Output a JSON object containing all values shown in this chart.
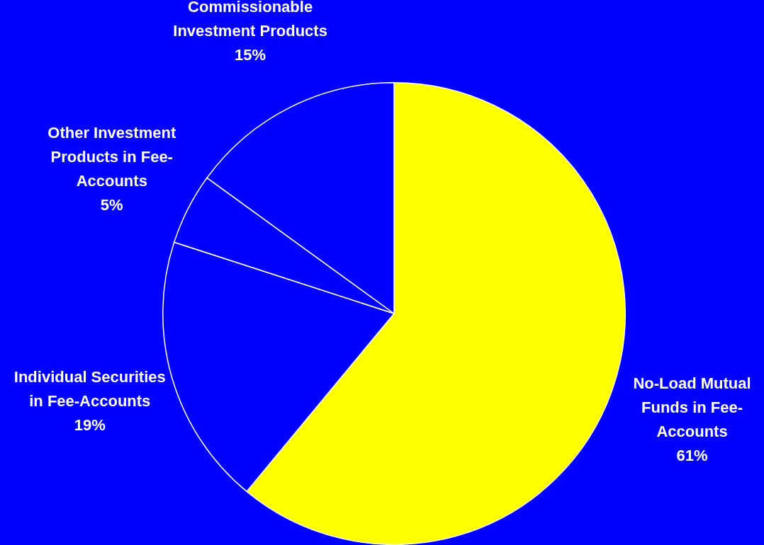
{
  "chart_data": {
    "type": "pie",
    "categories": [
      "No-Load Mutual Funds in Fee-Accounts",
      "Individual Securities in Fee-Accounts",
      "Other Investment Products in Fee-Accounts",
      "Commissionable Investment Products"
    ],
    "values": [
      61,
      19,
      5,
      15
    ],
    "value_labels": [
      "61%",
      "19%",
      "5%",
      "15%"
    ],
    "colors": [
      "#ffff00",
      "#0000ff",
      "#0000ff",
      "#0000ff"
    ],
    "legend": false
  }
}
